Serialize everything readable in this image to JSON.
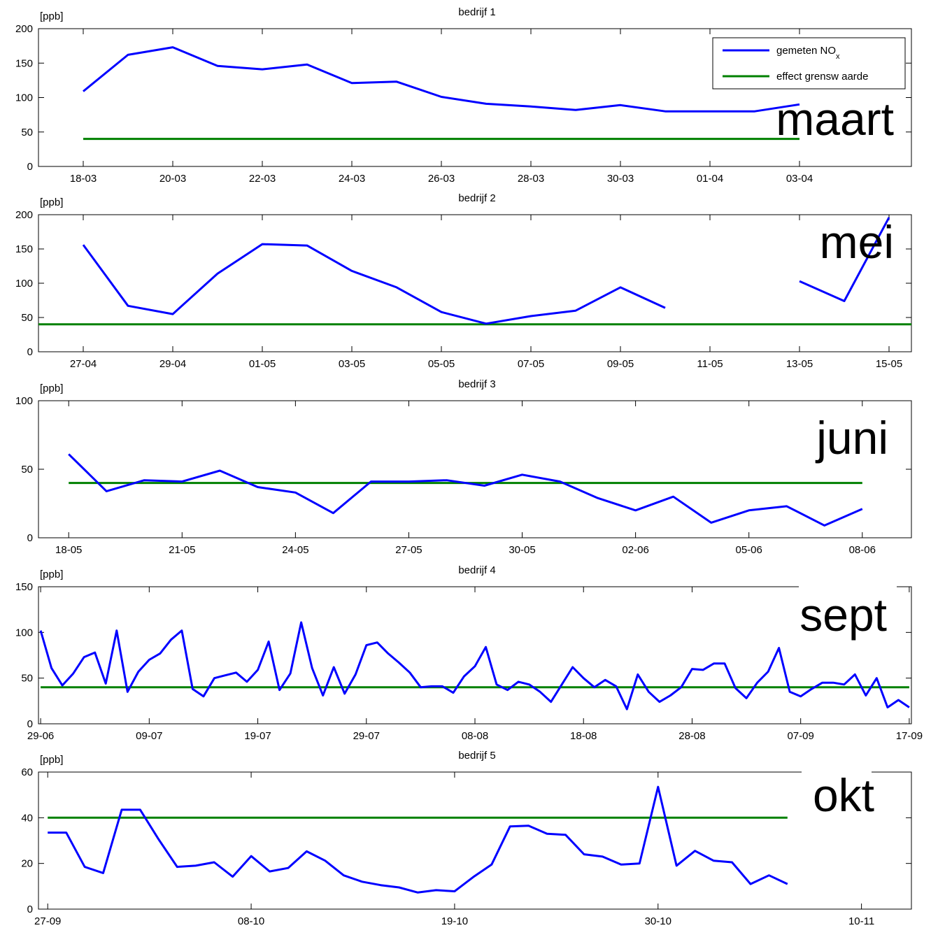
{
  "figure": {
    "legend": {
      "entries": [
        "gemeten NO",
        "effect grensw aarde"
      ],
      "subscript": "x",
      "placement": "top-right"
    }
  },
  "colors": {
    "measured": "#0000ff",
    "limit": "#008000",
    "axes": "#000000"
  },
  "chart_data": [
    {
      "type": "line",
      "title": "bedrijf 1",
      "ylabel": "[ppb]",
      "annotation": "maart",
      "ylim": [
        0,
        200
      ],
      "yticks": [
        0,
        50,
        100,
        150,
        200
      ],
      "xlim": [
        -1,
        18.5
      ],
      "tick_positions": [
        0,
        2,
        4,
        6,
        8,
        10,
        12,
        14,
        16
      ],
      "tick_labels": [
        "18-03",
        "20-03",
        "22-03",
        "24-03",
        "26-03",
        "28-03",
        "30-03",
        "01-04",
        "03-04"
      ],
      "series": [
        {
          "name": "gemeten NOx",
          "x": [
            0,
            1,
            2,
            3,
            4,
            5,
            6,
            7,
            8,
            9,
            10,
            11,
            12,
            13,
            14,
            15,
            16
          ],
          "values": [
            109,
            162,
            173,
            146,
            141,
            148,
            121,
            123,
            101,
            91,
            87,
            82,
            89,
            80,
            80,
            80,
            90
          ]
        },
        {
          "name": "effect grenswaarde",
          "x": [
            0,
            16
          ],
          "values": [
            40,
            40
          ]
        }
      ]
    },
    {
      "type": "line",
      "title": "bedrijf 2",
      "ylabel": "[ppb]",
      "annotation": "mei",
      "ylim": [
        0,
        200
      ],
      "yticks": [
        0,
        50,
        100,
        150,
        200
      ],
      "xlim": [
        -1,
        18.5
      ],
      "tick_positions": [
        0,
        2,
        4,
        6,
        8,
        10,
        12,
        14,
        16,
        18
      ],
      "tick_labels": [
        "27-04",
        "29-04",
        "01-05",
        "03-05",
        "05-05",
        "07-05",
        "09-05",
        "11-05",
        "13-05",
        "15-05"
      ],
      "series": [
        {
          "name": "gemeten NOx",
          "segments": [
            {
              "x": [
                0,
                1,
                2,
                3,
                4,
                5,
                6,
                7,
                8,
                9,
                10,
                11,
                12,
                13
              ],
              "values": [
                156,
                67,
                55,
                114,
                157,
                155,
                118,
                94,
                58,
                41,
                52,
                60,
                94,
                64
              ]
            },
            {
              "x": [
                16,
                17,
                18
              ],
              "values": [
                103,
                74,
                196
              ]
            }
          ]
        },
        {
          "name": "effect grenswaarde",
          "x": [
            -1,
            18.5
          ],
          "values": [
            40,
            40
          ]
        }
      ]
    },
    {
      "type": "line",
      "title": "bedrijf 3",
      "ylabel": "[ppb]",
      "annotation": "juni",
      "ylim": [
        0,
        100
      ],
      "yticks": [
        0,
        50,
        100
      ],
      "xlim": [
        -0.8,
        22.3
      ],
      "tick_positions": [
        0,
        3,
        6,
        9,
        12,
        15,
        18,
        21
      ],
      "tick_labels": [
        "18-05",
        "21-05",
        "24-05",
        "27-05",
        "30-05",
        "02-06",
        "05-06",
        "08-06"
      ],
      "series": [
        {
          "name": "gemeten NOx",
          "x": [
            0,
            1,
            2,
            3,
            4,
            5,
            6,
            7,
            8,
            9,
            10,
            11,
            12,
            13,
            14,
            15,
            16,
            17,
            18,
            19,
            20,
            21
          ],
          "values": [
            61,
            34,
            42,
            41,
            49,
            37,
            33,
            18,
            41,
            41,
            42,
            38,
            46,
            41,
            29,
            20,
            30,
            11,
            20,
            23,
            9,
            21
          ]
        },
        {
          "name": "effect grenswaarde",
          "x": [
            0,
            21
          ],
          "values": [
            40,
            40
          ]
        }
      ]
    },
    {
      "type": "line",
      "title": "bedrijf 4",
      "ylabel": "[ppb]",
      "annotation": "sept",
      "ylim": [
        0,
        150
      ],
      "yticks": [
        0,
        50,
        100,
        150
      ],
      "xlim": [
        -0.2,
        80.2
      ],
      "tick_positions": [
        0,
        10,
        20,
        30,
        40,
        50,
        60,
        70,
        80
      ],
      "tick_labels": [
        "29-06",
        "09-07",
        "19-07",
        "29-07",
        "08-08",
        "18-08",
        "28-08",
        "07-09",
        "17-09"
      ],
      "series": [
        {
          "name": "gemeten NOx",
          "x": [
            0,
            1,
            2,
            3,
            4,
            5,
            6,
            7,
            8,
            9,
            10,
            11,
            12,
            13,
            14,
            15,
            16,
            17,
            18,
            19,
            20,
            21,
            22,
            23,
            24,
            25,
            26,
            27,
            28,
            29,
            30,
            31,
            32,
            33,
            34,
            35,
            36,
            37,
            38,
            39,
            40,
            41,
            42,
            43,
            44,
            45,
            46,
            47,
            48,
            49,
            50,
            51,
            52,
            53,
            54,
            55,
            56,
            57,
            58,
            59,
            60,
            61,
            62,
            63,
            64,
            65,
            66,
            67,
            68,
            69,
            70,
            71,
            72,
            73,
            74,
            75,
            76,
            77,
            78,
            79,
            80
          ],
          "values": [
            102,
            61,
            42,
            55,
            73,
            78,
            44,
            102,
            35,
            57,
            70,
            77,
            92,
            102,
            38,
            30,
            50,
            53,
            56,
            46,
            59,
            90,
            37,
            55,
            111,
            61,
            31,
            62,
            33,
            54,
            86,
            89,
            77,
            67,
            56,
            40,
            41,
            41,
            34,
            52,
            63,
            84,
            43,
            37,
            46,
            43,
            35,
            24,
            43,
            62,
            50,
            40,
            48,
            41,
            16,
            54,
            35,
            24,
            31,
            40,
            60,
            59,
            66,
            66,
            39,
            28,
            45,
            57,
            83,
            35,
            30,
            38,
            45,
            45,
            43,
            54,
            31,
            50,
            18,
            26,
            18
          ]
        },
        {
          "name": "effect grenswaarde",
          "x": [
            0,
            80
          ],
          "values": [
            40,
            40
          ]
        }
      ]
    },
    {
      "type": "line",
      "title": "bedrijf 5",
      "ylabel": "[ppb]",
      "annotation": "okt",
      "ylim": [
        0,
        60
      ],
      "yticks": [
        0,
        20,
        40,
        60
      ],
      "xlim": [
        -0.5,
        46.7
      ],
      "tick_positions": [
        0,
        11,
        22,
        33,
        44
      ],
      "tick_labels": [
        "27-09",
        "08-10",
        "19-10",
        "30-10",
        "10-11"
      ],
      "series": [
        {
          "name": "gemeten NOx",
          "x": [
            0,
            1,
            2,
            3,
            4,
            5,
            6,
            7,
            8,
            9,
            10,
            11,
            12,
            13,
            14,
            15,
            16,
            17,
            18,
            19,
            20,
            21,
            22,
            23,
            24,
            25,
            26,
            27,
            28,
            29,
            30,
            31,
            32,
            33,
            34,
            35,
            36,
            37,
            38,
            39,
            40
          ],
          "values": [
            33.5,
            33.5,
            18.5,
            15.8,
            43.5,
            43.5,
            30.5,
            18.5,
            19,
            20.5,
            14.2,
            23.2,
            16.5,
            18,
            25.3,
            21.2,
            14.8,
            12,
            10.5,
            9.5,
            7.3,
            8.3,
            7.8,
            14,
            19.5,
            36.2,
            36.5,
            33,
            32.5,
            24,
            23,
            19.5,
            20,
            53.5,
            19,
            25.5,
            21.2,
            20.5,
            11,
            14.8,
            11
          ]
        },
        {
          "name": "effect grenswaarde",
          "x": [
            0,
            40
          ],
          "values": [
            40,
            40
          ]
        }
      ]
    }
  ]
}
